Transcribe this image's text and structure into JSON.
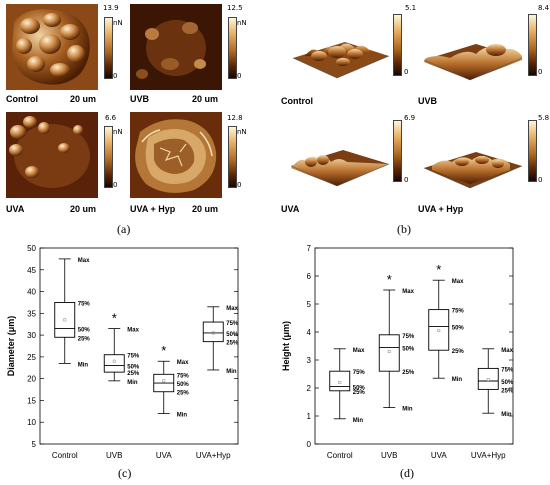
{
  "panel_labels": {
    "a": "(a)",
    "b": "(b)",
    "c": "(c)",
    "d": "(d)"
  },
  "panel_a": {
    "tiles": [
      {
        "label": "Control",
        "scale": "20 um",
        "cbar_top": "13.9",
        "cbar_unit": "nN",
        "cbar_bottom": "0"
      },
      {
        "label": "UVB",
        "scale": "20 um",
        "cbar_top": "12.5",
        "cbar_unit": "nN",
        "cbar_bottom": "0"
      },
      {
        "label": "UVA",
        "scale": "20 um",
        "cbar_top": "6.6",
        "cbar_unit": "nN",
        "cbar_bottom": "0"
      },
      {
        "label": "UVA + Hyp",
        "scale": "20 um",
        "cbar_top": "12.8",
        "cbar_unit": "nN",
        "cbar_bottom": "0"
      }
    ]
  },
  "panel_b": {
    "tiles": [
      {
        "label": "Control",
        "cbar_top": "5.1",
        "cbar_bottom": "0"
      },
      {
        "label": "UVB",
        "cbar_top": "8.4",
        "cbar_bottom": "0"
      },
      {
        "label": "UVA",
        "cbar_top": "6.9",
        "cbar_bottom": "0"
      },
      {
        "label": "UVA + Hyp",
        "cbar_top": "5.8",
        "cbar_bottom": "0"
      }
    ]
  },
  "chart_data": [
    {
      "type": "box",
      "panel": "c",
      "ylabel": "Diameter   (μm)",
      "ylim": [
        5,
        50
      ],
      "yticks": [
        5,
        10,
        15,
        20,
        25,
        30,
        35,
        40,
        45,
        50
      ],
      "categories": [
        "Control",
        "UVB",
        "UVA",
        "UVA+Hyp"
      ],
      "boxes": [
        {
          "min": 23.5,
          "q1": 29.5,
          "median": 31.5,
          "q3": 37.5,
          "max": 47.5,
          "mean": 33.5
        },
        {
          "min": 19.5,
          "q1": 21.5,
          "median": 23.0,
          "q3": 25.5,
          "max": 31.5,
          "mean": 24.0
        },
        {
          "min": 12.0,
          "q1": 17.0,
          "median": 19.0,
          "q3": 21.0,
          "max": 24.0,
          "mean": 19.5
        },
        {
          "min": 22.0,
          "q1": 28.5,
          "median": 30.5,
          "q3": 33.0,
          "max": 36.5,
          "mean": 30.5
        }
      ],
      "markers": [
        null,
        "*",
        "*",
        null
      ],
      "labels_at": [
        0,
        1,
        2,
        3
      ],
      "annotations": {
        "max": "Max",
        "q3": "75%",
        "median": "50%",
        "q1": "25%",
        "min": "Min"
      }
    },
    {
      "type": "box",
      "panel": "d",
      "ylabel": "Height   (μm)",
      "ylim": [
        0,
        7
      ],
      "yticks": [
        0,
        1,
        2,
        3,
        4,
        5,
        6,
        7
      ],
      "categories": [
        "Control",
        "UVB",
        "UVA",
        "UVA+Hyp"
      ],
      "boxes": [
        {
          "min": 0.9,
          "q1": 1.9,
          "median": 2.05,
          "q3": 2.6,
          "max": 3.4,
          "mean": 2.2
        },
        {
          "min": 1.3,
          "q1": 2.6,
          "median": 3.45,
          "q3": 3.9,
          "max": 5.5,
          "mean": 3.3
        },
        {
          "min": 2.35,
          "q1": 3.35,
          "median": 4.2,
          "q3": 4.8,
          "max": 5.85,
          "mean": 4.05
        },
        {
          "min": 1.1,
          "q1": 1.95,
          "median": 2.25,
          "q3": 2.7,
          "max": 3.4,
          "mean": 2.3
        }
      ],
      "markers": [
        null,
        "*",
        "*",
        null
      ],
      "labels_at": [
        0,
        1,
        2,
        3
      ],
      "annotations": {
        "max": "Max",
        "q3": "75%",
        "median": "50%",
        "q1": "25%",
        "min": "Min"
      }
    }
  ]
}
